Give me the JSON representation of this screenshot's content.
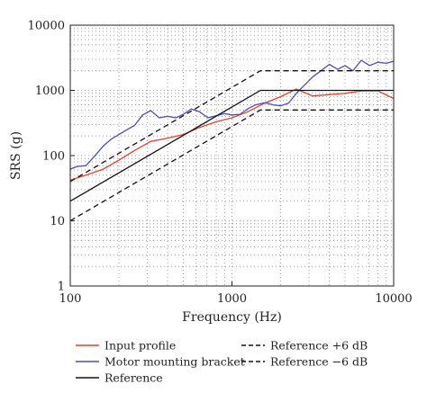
{
  "chart_data": {
    "type": "line",
    "title": "",
    "xlabel": "Frequency (Hz)",
    "ylabel": "SRS (g)",
    "xscale": "log",
    "yscale": "log",
    "xlim": [
      100,
      10000
    ],
    "ylim": [
      1,
      10000
    ],
    "grid": "dotted, log minor",
    "legend_position": "below",
    "x_ticks": [
      {
        "value": 100,
        "label": "100"
      },
      {
        "value": 1000,
        "label": "1000"
      },
      {
        "value": 10000,
        "label": "10000"
      }
    ],
    "y_ticks": [
      {
        "value": 1,
        "label": "1"
      },
      {
        "value": 10,
        "label": "10"
      },
      {
        "value": 100,
        "label": "100"
      },
      {
        "value": 1000,
        "label": "1000"
      },
      {
        "value": 10000,
        "label": "10000"
      }
    ],
    "series": [
      {
        "name": "Input profile",
        "color": "#e8402c",
        "dash": "solid",
        "x": [
          100,
          125,
          160,
          200,
          250,
          315,
          400,
          500,
          630,
          800,
          1000,
          1250,
          1600,
          2000,
          2500,
          3150,
          4000,
          5000,
          6300,
          8000,
          10000
        ],
        "y": [
          42,
          50,
          62,
          85,
          120,
          165,
          185,
          210,
          270,
          330,
          380,
          470,
          640,
          800,
          1050,
          820,
          860,
          900,
          980,
          980,
          750
        ]
      },
      {
        "name": "Motor mounting bracket",
        "color": "#4a4fb8",
        "dash": "solid",
        "x": [
          100,
          110,
          125,
          140,
          160,
          180,
          200,
          225,
          250,
          280,
          315,
          355,
          400,
          450,
          500,
          560,
          630,
          710,
          800,
          900,
          1000,
          1120,
          1250,
          1400,
          1600,
          1800,
          2000,
          2240,
          2500,
          2800,
          3150,
          3550,
          4000,
          4500,
          5000,
          5600,
          6300,
          7100,
          8000,
          9000,
          10000
        ],
        "y": [
          62,
          68,
          70,
          95,
          140,
          180,
          210,
          250,
          290,
          420,
          490,
          380,
          400,
          380,
          430,
          520,
          470,
          380,
          410,
          440,
          420,
          430,
          520,
          600,
          650,
          600,
          580,
          640,
          900,
          1200,
          1600,
          2000,
          2500,
          2100,
          2400,
          2000,
          2900,
          2400,
          2700,
          2600,
          2800
        ]
      },
      {
        "name": "Reference",
        "color": "#111111",
        "dash": "solid",
        "x": [
          100,
          1500,
          10000
        ],
        "y": [
          20,
          1000,
          1000
        ]
      },
      {
        "name": "Reference +6 dB",
        "color": "#111111",
        "dash": "dashed",
        "x": [
          100,
          1500,
          10000
        ],
        "y": [
          40,
          2000,
          2000
        ]
      },
      {
        "name": "Reference −6 dB",
        "color": "#111111",
        "dash": "dashed",
        "x": [
          100,
          1500,
          10000
        ],
        "y": [
          10,
          500,
          500
        ]
      }
    ],
    "legend": [
      {
        "series": 0,
        "label": "Input profile"
      },
      {
        "series": 1,
        "label": "Motor mounting bracket"
      },
      {
        "series": 2,
        "label": "Reference"
      },
      {
        "series": 3,
        "label": "Reference +6 dB"
      },
      {
        "series": 4,
        "label": "Reference −6 dB"
      }
    ]
  }
}
